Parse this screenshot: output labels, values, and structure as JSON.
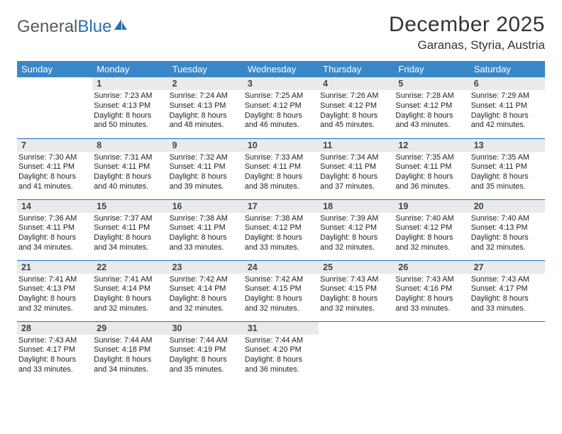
{
  "logo": {
    "part1": "General",
    "part2": "Blue"
  },
  "title": "December 2025",
  "location": "Garanas, Styria, Austria",
  "colors": {
    "header_bg": "#3a87c8",
    "header_text": "#ffffff",
    "row_divider": "#2a6fb0",
    "daynum_bg": "#e9eaec",
    "logo_gray": "#555b60",
    "logo_blue": "#2a6fb0"
  },
  "weekdays": [
    "Sunday",
    "Monday",
    "Tuesday",
    "Wednesday",
    "Thursday",
    "Friday",
    "Saturday"
  ],
  "weeks": [
    [
      null,
      {
        "n": "1",
        "sr": "7:23 AM",
        "ss": "4:13 PM",
        "dl": "8 hours and 50 minutes."
      },
      {
        "n": "2",
        "sr": "7:24 AM",
        "ss": "4:13 PM",
        "dl": "8 hours and 48 minutes."
      },
      {
        "n": "3",
        "sr": "7:25 AM",
        "ss": "4:12 PM",
        "dl": "8 hours and 46 minutes."
      },
      {
        "n": "4",
        "sr": "7:26 AM",
        "ss": "4:12 PM",
        "dl": "8 hours and 45 minutes."
      },
      {
        "n": "5",
        "sr": "7:28 AM",
        "ss": "4:12 PM",
        "dl": "8 hours and 43 minutes."
      },
      {
        "n": "6",
        "sr": "7:29 AM",
        "ss": "4:11 PM",
        "dl": "8 hours and 42 minutes."
      }
    ],
    [
      {
        "n": "7",
        "sr": "7:30 AM",
        "ss": "4:11 PM",
        "dl": "8 hours and 41 minutes."
      },
      {
        "n": "8",
        "sr": "7:31 AM",
        "ss": "4:11 PM",
        "dl": "8 hours and 40 minutes."
      },
      {
        "n": "9",
        "sr": "7:32 AM",
        "ss": "4:11 PM",
        "dl": "8 hours and 39 minutes."
      },
      {
        "n": "10",
        "sr": "7:33 AM",
        "ss": "4:11 PM",
        "dl": "8 hours and 38 minutes."
      },
      {
        "n": "11",
        "sr": "7:34 AM",
        "ss": "4:11 PM",
        "dl": "8 hours and 37 minutes."
      },
      {
        "n": "12",
        "sr": "7:35 AM",
        "ss": "4:11 PM",
        "dl": "8 hours and 36 minutes."
      },
      {
        "n": "13",
        "sr": "7:35 AM",
        "ss": "4:11 PM",
        "dl": "8 hours and 35 minutes."
      }
    ],
    [
      {
        "n": "14",
        "sr": "7:36 AM",
        "ss": "4:11 PM",
        "dl": "8 hours and 34 minutes."
      },
      {
        "n": "15",
        "sr": "7:37 AM",
        "ss": "4:11 PM",
        "dl": "8 hours and 34 minutes."
      },
      {
        "n": "16",
        "sr": "7:38 AM",
        "ss": "4:11 PM",
        "dl": "8 hours and 33 minutes."
      },
      {
        "n": "17",
        "sr": "7:38 AM",
        "ss": "4:12 PM",
        "dl": "8 hours and 33 minutes."
      },
      {
        "n": "18",
        "sr": "7:39 AM",
        "ss": "4:12 PM",
        "dl": "8 hours and 32 minutes."
      },
      {
        "n": "19",
        "sr": "7:40 AM",
        "ss": "4:12 PM",
        "dl": "8 hours and 32 minutes."
      },
      {
        "n": "20",
        "sr": "7:40 AM",
        "ss": "4:13 PM",
        "dl": "8 hours and 32 minutes."
      }
    ],
    [
      {
        "n": "21",
        "sr": "7:41 AM",
        "ss": "4:13 PM",
        "dl": "8 hours and 32 minutes."
      },
      {
        "n": "22",
        "sr": "7:41 AM",
        "ss": "4:14 PM",
        "dl": "8 hours and 32 minutes."
      },
      {
        "n": "23",
        "sr": "7:42 AM",
        "ss": "4:14 PM",
        "dl": "8 hours and 32 minutes."
      },
      {
        "n": "24",
        "sr": "7:42 AM",
        "ss": "4:15 PM",
        "dl": "8 hours and 32 minutes."
      },
      {
        "n": "25",
        "sr": "7:43 AM",
        "ss": "4:15 PM",
        "dl": "8 hours and 32 minutes."
      },
      {
        "n": "26",
        "sr": "7:43 AM",
        "ss": "4:16 PM",
        "dl": "8 hours and 33 minutes."
      },
      {
        "n": "27",
        "sr": "7:43 AM",
        "ss": "4:17 PM",
        "dl": "8 hours and 33 minutes."
      }
    ],
    [
      {
        "n": "28",
        "sr": "7:43 AM",
        "ss": "4:17 PM",
        "dl": "8 hours and 33 minutes."
      },
      {
        "n": "29",
        "sr": "7:44 AM",
        "ss": "4:18 PM",
        "dl": "8 hours and 34 minutes."
      },
      {
        "n": "30",
        "sr": "7:44 AM",
        "ss": "4:19 PM",
        "dl": "8 hours and 35 minutes."
      },
      {
        "n": "31",
        "sr": "7:44 AM",
        "ss": "4:20 PM",
        "dl": "8 hours and 36 minutes."
      },
      null,
      null,
      null
    ]
  ],
  "labels": {
    "sunrise": "Sunrise:",
    "sunset": "Sunset:",
    "daylight": "Daylight:"
  }
}
